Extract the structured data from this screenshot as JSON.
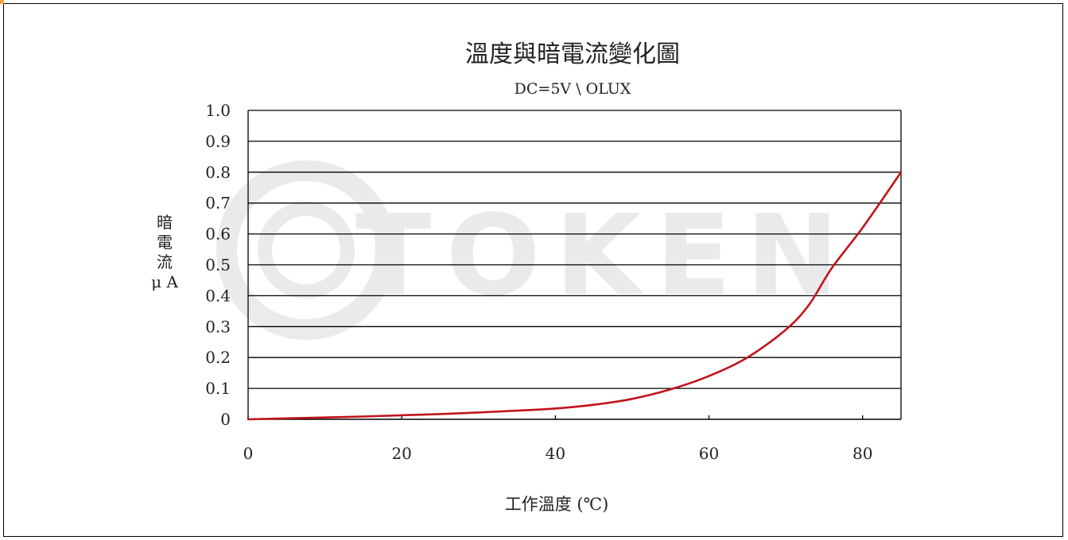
{
  "chart_data": {
    "type": "line",
    "title": "溫度與暗電流變化圖",
    "subtitle": "DC=5V \\ OLUX",
    "xlabel": "工作溫度 (℃)",
    "ylabel_lines": [
      "暗",
      "電",
      "流",
      "μ A"
    ],
    "xlim": [
      0,
      85
    ],
    "ylim": [
      0,
      1.0
    ],
    "xticks": [
      0,
      20,
      40,
      60,
      80
    ],
    "xtick_labels": [
      "0",
      "20",
      "40",
      "60",
      "80"
    ],
    "yticks": [
      0,
      0.1,
      0.2,
      0.3,
      0.4,
      0.5,
      0.6,
      0.7,
      0.8,
      0.9,
      1.0
    ],
    "ytick_labels": [
      "0",
      "0.1",
      "0.2",
      "0.3",
      "0.4",
      "0.5",
      "0.6",
      "0.7",
      "0.8",
      "0.9",
      "1.0"
    ],
    "grid": "horizontal",
    "series": [
      {
        "color": "#c0141c",
        "x": [
          0,
          5,
          10,
          15,
          20,
          25,
          30,
          35,
          40,
          45,
          50,
          55,
          60,
          65,
          70,
          73,
          76,
          80,
          85
        ],
        "y": [
          0.0,
          0.003,
          0.006,
          0.009,
          0.013,
          0.017,
          0.022,
          0.028,
          0.035,
          0.047,
          0.066,
          0.097,
          0.14,
          0.2,
          0.29,
          0.37,
          0.49,
          0.62,
          0.8
        ]
      }
    ],
    "watermark": "TOKEN"
  }
}
